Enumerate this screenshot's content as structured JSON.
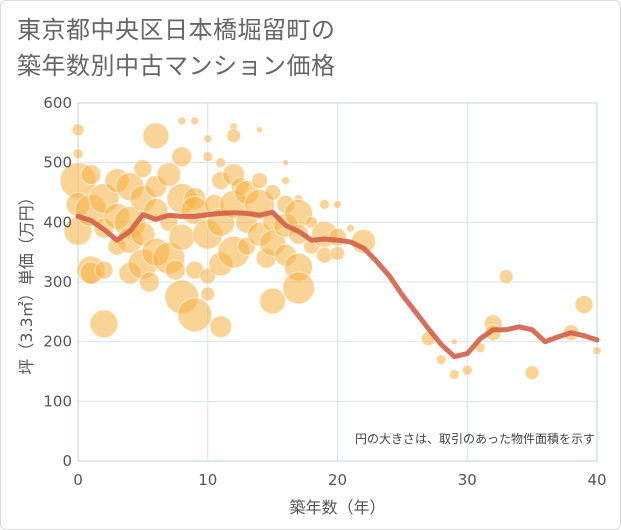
{
  "title_lines": [
    "東京都中央区日本橋堀留町の",
    "築年数別中古マンション価格"
  ],
  "note": "円の大きさは、取引のあった物件面積を示す",
  "colors": {
    "bubble": "#f5b041",
    "line": "#d35f48",
    "grid": "#d6e4f0",
    "plot_border": "#bfcfdf"
  },
  "chart_data": {
    "type": "scatter",
    "xlabel": "築年数（年）",
    "ylabel": "坪（3.3㎡）単価（万円）",
    "xlim": [
      0,
      40
    ],
    "ylim": [
      0,
      600
    ],
    "x_ticks": [
      0,
      10,
      20,
      30,
      40
    ],
    "y_ticks": [
      0,
      100,
      200,
      300,
      400,
      500,
      600
    ],
    "bubbles": [
      {
        "x": 0,
        "y": 555,
        "size": 6
      },
      {
        "x": 0,
        "y": 515,
        "size": 5
      },
      {
        "x": 0,
        "y": 470,
        "size": 18
      },
      {
        "x": 0,
        "y": 430,
        "size": 12
      },
      {
        "x": 0,
        "y": 385,
        "size": 14
      },
      {
        "x": 1,
        "y": 480,
        "size": 10
      },
      {
        "x": 1,
        "y": 420,
        "size": 16
      },
      {
        "x": 1,
        "y": 320,
        "size": 14
      },
      {
        "x": 1,
        "y": 315,
        "size": 11
      },
      {
        "x": 2,
        "y": 230,
        "size": 14
      },
      {
        "x": 2,
        "y": 320,
        "size": 9
      },
      {
        "x": 2,
        "y": 390,
        "size": 10
      },
      {
        "x": 2,
        "y": 440,
        "size": 15
      },
      {
        "x": 3,
        "y": 470,
        "size": 12
      },
      {
        "x": 3,
        "y": 410,
        "size": 13
      },
      {
        "x": 3,
        "y": 360,
        "size": 9
      },
      {
        "x": 4,
        "y": 460,
        "size": 14
      },
      {
        "x": 4,
        "y": 400,
        "size": 16
      },
      {
        "x": 4,
        "y": 370,
        "size": 13
      },
      {
        "x": 4,
        "y": 315,
        "size": 11
      },
      {
        "x": 5,
        "y": 490,
        "size": 9
      },
      {
        "x": 5,
        "y": 440,
        "size": 13
      },
      {
        "x": 5,
        "y": 380,
        "size": 12
      },
      {
        "x": 5,
        "y": 330,
        "size": 15
      },
      {
        "x": 5.5,
        "y": 300,
        "size": 10
      },
      {
        "x": 6,
        "y": 545,
        "size": 13
      },
      {
        "x": 6,
        "y": 460,
        "size": 11
      },
      {
        "x": 6,
        "y": 420,
        "size": 12
      },
      {
        "x": 6,
        "y": 350,
        "size": 14
      },
      {
        "x": 7,
        "y": 480,
        "size": 12
      },
      {
        "x": 7,
        "y": 400,
        "size": 9
      },
      {
        "x": 7,
        "y": 340,
        "size": 16
      },
      {
        "x": 7.5,
        "y": 320,
        "size": 10
      },
      {
        "x": 8,
        "y": 570,
        "size": 4
      },
      {
        "x": 8,
        "y": 510,
        "size": 10
      },
      {
        "x": 8,
        "y": 440,
        "size": 15
      },
      {
        "x": 8,
        "y": 375,
        "size": 13
      },
      {
        "x": 8,
        "y": 275,
        "size": 17
      },
      {
        "x": 9,
        "y": 570,
        "size": 4
      },
      {
        "x": 9,
        "y": 440,
        "size": 11
      },
      {
        "x": 9,
        "y": 420,
        "size": 14
      },
      {
        "x": 9,
        "y": 245,
        "size": 17
      },
      {
        "x": 9,
        "y": 320,
        "size": 9
      },
      {
        "x": 10,
        "y": 540,
        "size": 4
      },
      {
        "x": 10,
        "y": 510,
        "size": 5
      },
      {
        "x": 10,
        "y": 380,
        "size": 15
      },
      {
        "x": 10,
        "y": 310,
        "size": 8
      },
      {
        "x": 10,
        "y": 280,
        "size": 7
      },
      {
        "x": 10.5,
        "y": 430,
        "size": 10
      },
      {
        "x": 11,
        "y": 500,
        "size": 5
      },
      {
        "x": 11,
        "y": 470,
        "size": 9
      },
      {
        "x": 11,
        "y": 400,
        "size": 14
      },
      {
        "x": 11,
        "y": 330,
        "size": 12
      },
      {
        "x": 11,
        "y": 225,
        "size": 11
      },
      {
        "x": 12,
        "y": 560,
        "size": 4
      },
      {
        "x": 12,
        "y": 545,
        "size": 7
      },
      {
        "x": 12,
        "y": 480,
        "size": 11
      },
      {
        "x": 12,
        "y": 430,
        "size": 14
      },
      {
        "x": 12,
        "y": 350,
        "size": 16
      },
      {
        "x": 12.5,
        "y": 460,
        "size": 9
      },
      {
        "x": 13,
        "y": 450,
        "size": 12
      },
      {
        "x": 13,
        "y": 400,
        "size": 11
      },
      {
        "x": 13,
        "y": 360,
        "size": 9
      },
      {
        "x": 14,
        "y": 555,
        "size": 3
      },
      {
        "x": 14,
        "y": 470,
        "size": 8
      },
      {
        "x": 14,
        "y": 430,
        "size": 15
      },
      {
        "x": 14,
        "y": 380,
        "size": 12
      },
      {
        "x": 14.5,
        "y": 340,
        "size": 10
      },
      {
        "x": 15,
        "y": 450,
        "size": 8
      },
      {
        "x": 15,
        "y": 400,
        "size": 10
      },
      {
        "x": 15,
        "y": 365,
        "size": 13
      },
      {
        "x": 15,
        "y": 268,
        "size": 13
      },
      {
        "x": 16,
        "y": 500,
        "size": 3
      },
      {
        "x": 16,
        "y": 470,
        "size": 4
      },
      {
        "x": 16,
        "y": 430,
        "size": 9
      },
      {
        "x": 16,
        "y": 395,
        "size": 12
      },
      {
        "x": 16,
        "y": 345,
        "size": 11
      },
      {
        "x": 17,
        "y": 440,
        "size": 4
      },
      {
        "x": 17,
        "y": 415,
        "size": 14
      },
      {
        "x": 17,
        "y": 380,
        "size": 10
      },
      {
        "x": 17,
        "y": 325,
        "size": 14
      },
      {
        "x": 17,
        "y": 290,
        "size": 16
      },
      {
        "x": 18,
        "y": 400,
        "size": 6
      },
      {
        "x": 18,
        "y": 360,
        "size": 8
      },
      {
        "x": 19,
        "y": 430,
        "size": 5
      },
      {
        "x": 19,
        "y": 380,
        "size": 13
      },
      {
        "x": 19,
        "y": 345,
        "size": 8
      },
      {
        "x": 20,
        "y": 430,
        "size": 4
      },
      {
        "x": 20,
        "y": 375,
        "size": 9
      },
      {
        "x": 20,
        "y": 348,
        "size": 7
      },
      {
        "x": 21,
        "y": 390,
        "size": 4
      },
      {
        "x": 22,
        "y": 368,
        "size": 12
      },
      {
        "x": 27,
        "y": 205,
        "size": 7
      },
      {
        "x": 28,
        "y": 170,
        "size": 5
      },
      {
        "x": 29,
        "y": 145,
        "size": 5
      },
      {
        "x": 29,
        "y": 200,
        "size": 3
      },
      {
        "x": 30,
        "y": 152,
        "size": 5
      },
      {
        "x": 31,
        "y": 190,
        "size": 5
      },
      {
        "x": 32,
        "y": 230,
        "size": 9
      },
      {
        "x": 32,
        "y": 215,
        "size": 8
      },
      {
        "x": 33,
        "y": 309,
        "size": 7
      },
      {
        "x": 35,
        "y": 148,
        "size": 7
      },
      {
        "x": 38,
        "y": 215,
        "size": 8
      },
      {
        "x": 39,
        "y": 262,
        "size": 9
      },
      {
        "x": 40,
        "y": 185,
        "size": 4
      }
    ],
    "series": [
      {
        "x": [
          0,
          1,
          2,
          3,
          4,
          5,
          6,
          7,
          8,
          9,
          10,
          11,
          12,
          13,
          14,
          15,
          16,
          17,
          18,
          19,
          20,
          21,
          22,
          23,
          24,
          25,
          26,
          27,
          28,
          29,
          30,
          31,
          32,
          33,
          34,
          35,
          36,
          37,
          38,
          39,
          40
        ],
        "y": [
          410,
          403,
          388,
          370,
          385,
          413,
          405,
          412,
          410,
          410,
          413,
          415,
          416,
          415,
          412,
          417,
          395,
          385,
          370,
          372,
          370,
          367,
          357,
          335,
          310,
          278,
          250,
          222,
          195,
          175,
          180,
          205,
          220,
          220,
          225,
          220,
          200,
          208,
          215,
          210,
          203
        ]
      }
    ]
  }
}
